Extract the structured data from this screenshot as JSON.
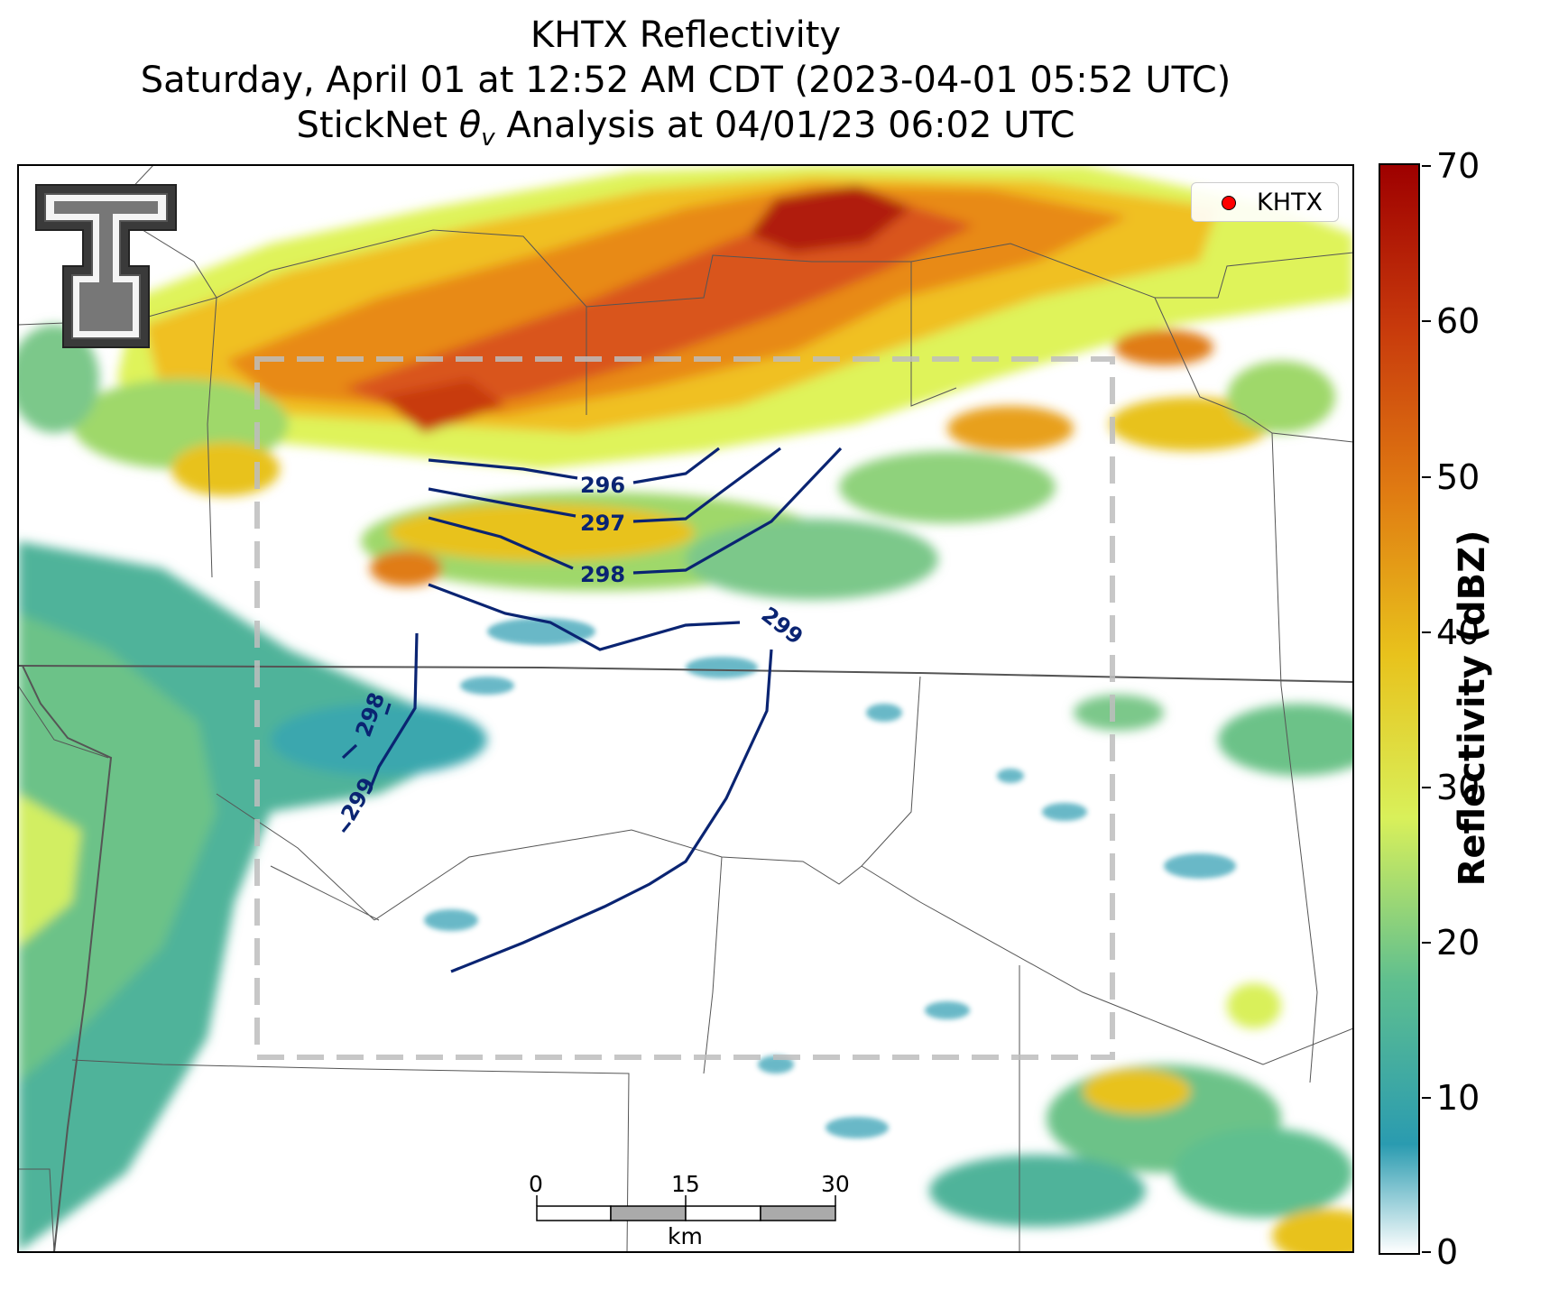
{
  "title": {
    "line1": "KHTX Reflectivity",
    "line2": "Saturday, April 01 at 12:52 AM CDT (2023-04-01 05:52 UTC)",
    "line3": "StickNet θv Analysis at 04/01/23 06:02 UTC"
  },
  "legend": {
    "label": "KHTX",
    "marker_color": "#ff0000"
  },
  "colorbar": {
    "title": "Reflectivity (dBZ)",
    "ticks": [
      "70",
      "60",
      "50",
      "40",
      "30",
      "20",
      "10",
      "0"
    ],
    "colors": [
      "#ffffff",
      "#2a9bb0",
      "#5fbf8f",
      "#d9f05a",
      "#e8c21c",
      "#e07b12",
      "#c83a0c",
      "#9e0000"
    ]
  },
  "contours": {
    "color": "#0a2472",
    "labels": [
      "296",
      "297",
      "298",
      "299",
      "298",
      "299"
    ]
  },
  "scalebar": {
    "ticks": [
      "0",
      "15",
      "30"
    ],
    "unit": "km"
  },
  "logo": {
    "name": "Texas Tech double-T"
  }
}
